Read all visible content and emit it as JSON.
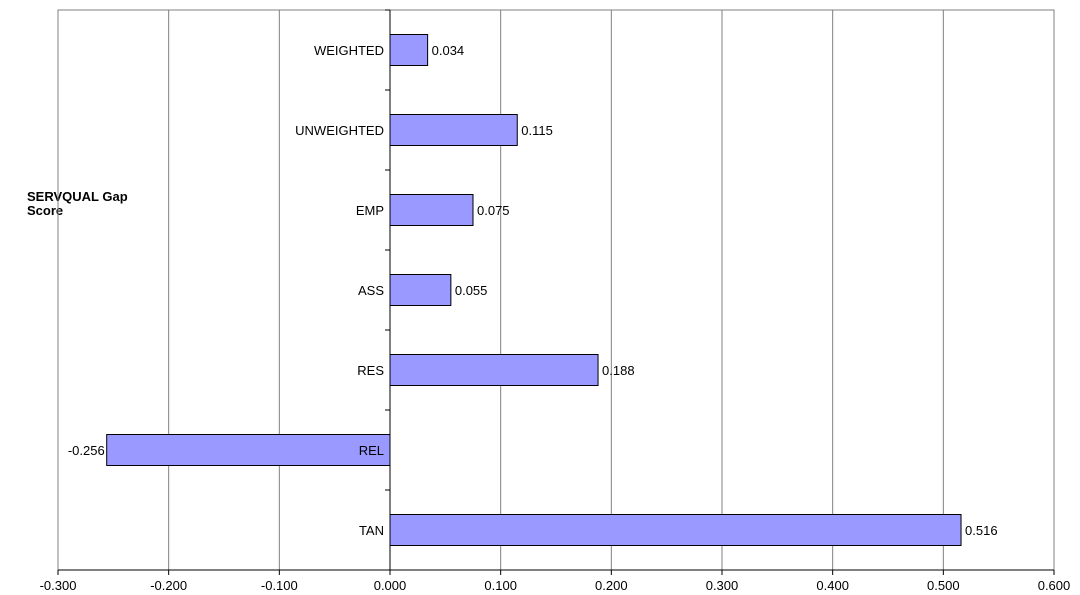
{
  "chart_data": {
    "type": "bar",
    "orientation": "horizontal",
    "ylabel_lines": [
      "SERVQUAL Gap",
      "Score"
    ],
    "categories": [
      "WEIGHTED",
      "UNWEIGHTED",
      "EMP",
      "ASS",
      "RES",
      "REL",
      "TAN"
    ],
    "values": [
      0.034,
      0.115,
      0.075,
      0.055,
      0.188,
      -0.256,
      0.516
    ],
    "value_labels": [
      "0.034",
      "0.115",
      "0.075",
      "0.055",
      "0.188",
      "-0.256",
      "0.516"
    ],
    "xlim": [
      -0.3,
      0.6
    ],
    "xticks": [
      -0.3,
      -0.2,
      -0.1,
      0.0,
      0.1,
      0.2,
      0.3,
      0.4,
      0.5,
      0.6
    ],
    "xtick_labels": [
      "-0.300",
      "-0.200",
      "-0.100",
      "0.000",
      "0.100",
      "0.200",
      "0.300",
      "0.400",
      "0.500",
      "0.600"
    ],
    "grid": "vertical",
    "bar_color": "#9999ff",
    "bar_edge_color": "#000000",
    "grid_color": "#808080"
  }
}
